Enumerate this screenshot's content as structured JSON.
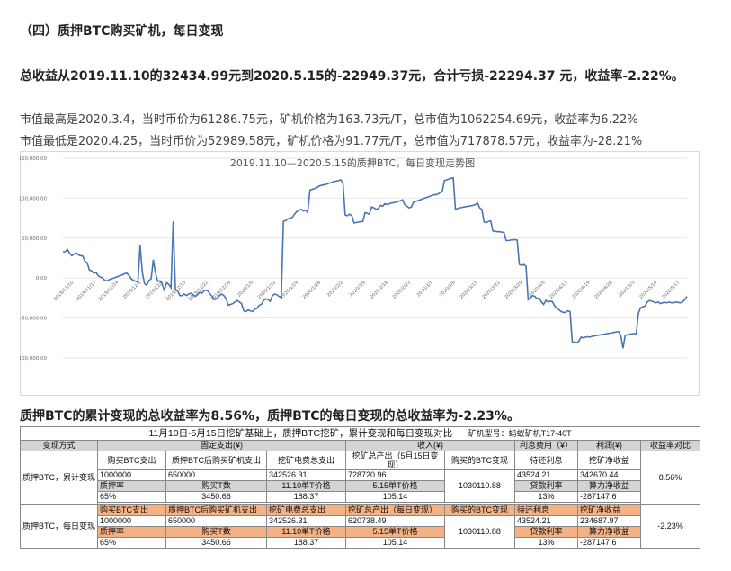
{
  "heading": "（四）质押BTC购买矿机，每日变现",
  "summary": "总收益从2019.11.10的32434.99元到2020.5.15的-22949.37元，合计亏损-22294.37 元，收益率-2.22%。",
  "para_high": "市值最高是2020.3.4，当时币价为61286.75元，矿机价格为163.73元/T，总市值为1062254.69元，收益率为6.22%",
  "para_low": "市值最低是2020.4.25，当时币价为52989.58元，矿机价格为91.77元/T，总市值为717878.57元，收益率为-28.21%",
  "chart_data": {
    "type": "line",
    "title": "2019.11.10—2020.5.15的质押BTC，每日变现走势图",
    "ylim": [
      -100000,
      150000
    ],
    "yticks": [
      150000,
      100000,
      50000,
      0,
      -50000,
      -100000
    ],
    "ytick_labels": [
      "150,000.00",
      "100,000.00",
      "50,000.00",
      "0.00",
      "-50,000.00",
      "-100,000.00"
    ],
    "xtick_labels": [
      "2019/11/10",
      "2019/11/17",
      "2019/11/24",
      "2019/12/1",
      "2019/12/8",
      "2019/12/15",
      "2019/12/22",
      "2019/12/29",
      "2020/1/5",
      "2020/1/12",
      "2020/1/19",
      "2020/1/26",
      "2020/2/2",
      "2020/2/9",
      "2020/2/16",
      "2020/2/23",
      "2020/3/1",
      "2020/3/8",
      "2020/3/15",
      "2020/3/22",
      "2020/3/29",
      "2020/4/5",
      "2020/4/12",
      "2020/4/19",
      "2020/4/26",
      "2020/5/3",
      "2020/5/10",
      "2020/5/17"
    ],
    "series": [
      {
        "values": [
          32434,
          33000,
          36000,
          31000,
          28000,
          30000,
          31500,
          29000,
          28000,
          27500,
          21000,
          19000,
          10000,
          9000,
          6000,
          7000,
          3000,
          1000,
          500,
          -3000,
          -3500,
          -2000,
          -1000,
          0,
          1000,
          2000,
          3000,
          4000,
          5500,
          6000,
          3000,
          -1000,
          -3000,
          -4000,
          -5000,
          41000,
          7000,
          -7000,
          -9000,
          -3000,
          -1000,
          23000,
          6000,
          -4000,
          -3500,
          -8000,
          -15000,
          -6000,
          -8000,
          -12000,
          71000,
          -15000,
          -16000,
          -22000,
          -22000,
          -20000,
          -22000,
          -20000,
          -19000,
          -21000,
          -23000,
          -21000,
          -18000,
          -19000,
          -16000,
          -15000,
          -17000,
          -21000,
          -24000,
          -27000,
          -25000,
          -22000,
          -20000,
          -22000,
          -26000,
          -34000,
          -33000,
          -32000,
          -30000,
          -28000,
          -30000,
          -32000,
          -41000,
          -42000,
          -40000,
          -41000,
          -42000,
          -39000,
          -38000,
          -34000,
          -33000,
          -28000,
          -26000,
          -27000,
          -29000,
          -22000,
          -20000,
          -21000,
          -23000,
          -24000,
          71000,
          72000,
          74000,
          75000,
          76000,
          80000,
          83000,
          85000,
          86000,
          84000,
          85000,
          82000,
          110000,
          111000,
          112000,
          113000,
          115000,
          116000,
          116500,
          117000,
          118000,
          119000,
          120000,
          121000,
          121500,
          122000,
          123000,
          119000,
          79000,
          78000,
          80000,
          78000,
          69000,
          69500,
          70000,
          70500,
          71000,
          82000,
          81000,
          80000,
          89000,
          88000,
          86000,
          87000,
          91000,
          90000,
          93000,
          92000,
          93000,
          94000,
          94500,
          95000,
          96000,
          97000,
          98000,
          92000,
          90000,
          88000,
          89000,
          95000,
          96000,
          97000,
          98000,
          99000,
          100000,
          101000,
          102000,
          103000,
          104000,
          104500,
          105000,
          107000,
          108000,
          122000,
          123000,
          124000,
          125000,
          125500,
          86000,
          87000,
          88000,
          88500,
          89000,
          89500,
          90000,
          90500,
          91000,
          92000,
          94000,
          88000,
          86000,
          70000,
          69500,
          71000,
          71500,
          59000,
          58500,
          58000,
          58000,
          57500,
          57000,
          47000,
          47000,
          47500,
          48000,
          48000,
          47500,
          17000,
          16000,
          17000,
          15000,
          -27000,
          -25000,
          -22000,
          -23000,
          -26000,
          -25000,
          -30000,
          -33000,
          -28000,
          -30000,
          -29000,
          -29500,
          -35000,
          -37000,
          -40000,
          -42000,
          -43000,
          -43000,
          -41000,
          -42000,
          -81000,
          -80000,
          -81000,
          -79000,
          -74000,
          -75000,
          -74000,
          -73500,
          -74000,
          -73000,
          -72500,
          -72000,
          -71500,
          -71000,
          -70500,
          -70000,
          -69500,
          -69000,
          -68500,
          -68000,
          -67500,
          -67000,
          -72000,
          -88000,
          -72000,
          -71000,
          -70500,
          -70000,
          -69500,
          -70000,
          -44000,
          -37000,
          -36000,
          -35000,
          -30000,
          -28000,
          -29000,
          -30000,
          -31000,
          -30000,
          -32000,
          -31000,
          -30500,
          -31000,
          -30000,
          -31000,
          -31000,
          -30000,
          -30500,
          -31000,
          -30000,
          -27000,
          -22949
        ]
      }
    ]
  },
  "table": {
    "title": "11月10日-5月15日挖矿基础上，质押BTC挖矿，累计变现和每日变现对比",
    "miner_model": "矿机型号：蚂蚁矿机T17-40T",
    "header": [
      "变现方式",
      "固定支出(¥)",
      "收入(¥)",
      "利息费用（¥）",
      "利润(¥)",
      "收益率对比"
    ],
    "sub_headers": [
      "购买BTC支出",
      "质押BTC后购买矿机支出",
      "挖矿电费总支出",
      "挖矿总产出（5月15日变现）",
      "购买的BTC变现",
      "待还利息",
      "挖矿净收益"
    ],
    "row1": {
      "label": "质押BTC，累计变现",
      "v1": [
        "1000000",
        "650000",
        "342526.31",
        "728720.96",
        "43524.21",
        "342670.44"
      ],
      "lab2": [
        "质押率",
        "购买T数",
        "11.10单T价格",
        "5.15单T价格",
        "贷款利率",
        "算力净收益"
      ],
      "v3": [
        "65%",
        "3450.66",
        "188.37",
        "105.14",
        "13%",
        "-287147.6"
      ],
      "btc": "1030110.88",
      "rate": "8.56%"
    },
    "row2": {
      "label": "质押BTC，每日变现",
      "lab1": [
        "购买BTC支出",
        "质押BTC后购买矿机支出",
        "挖矿电费总支出",
        "挖矿总产出（每日变现）",
        "购买的BTC变现",
        "待还利息",
        "挖矿净收益"
      ],
      "v1": [
        "1000000",
        "650000",
        "342526.31",
        "620738.49",
        "43524.21",
        "234687.97"
      ],
      "lab2": [
        "质押率",
        "购买T数",
        "11.10单T价格",
        "5.15单T价格",
        "贷款利率",
        "算力净收益"
      ],
      "v3": [
        "65%",
        "3450.66",
        "188.37",
        "105.14",
        "13%",
        "-287147.6"
      ],
      "btc": "1030110.88",
      "rate": "-2.23%"
    }
  },
  "table_heading": "质押BTC的累计变现的总收益率为8.56%，质押BTC的每日变现的总收益率为-2.23%。"
}
